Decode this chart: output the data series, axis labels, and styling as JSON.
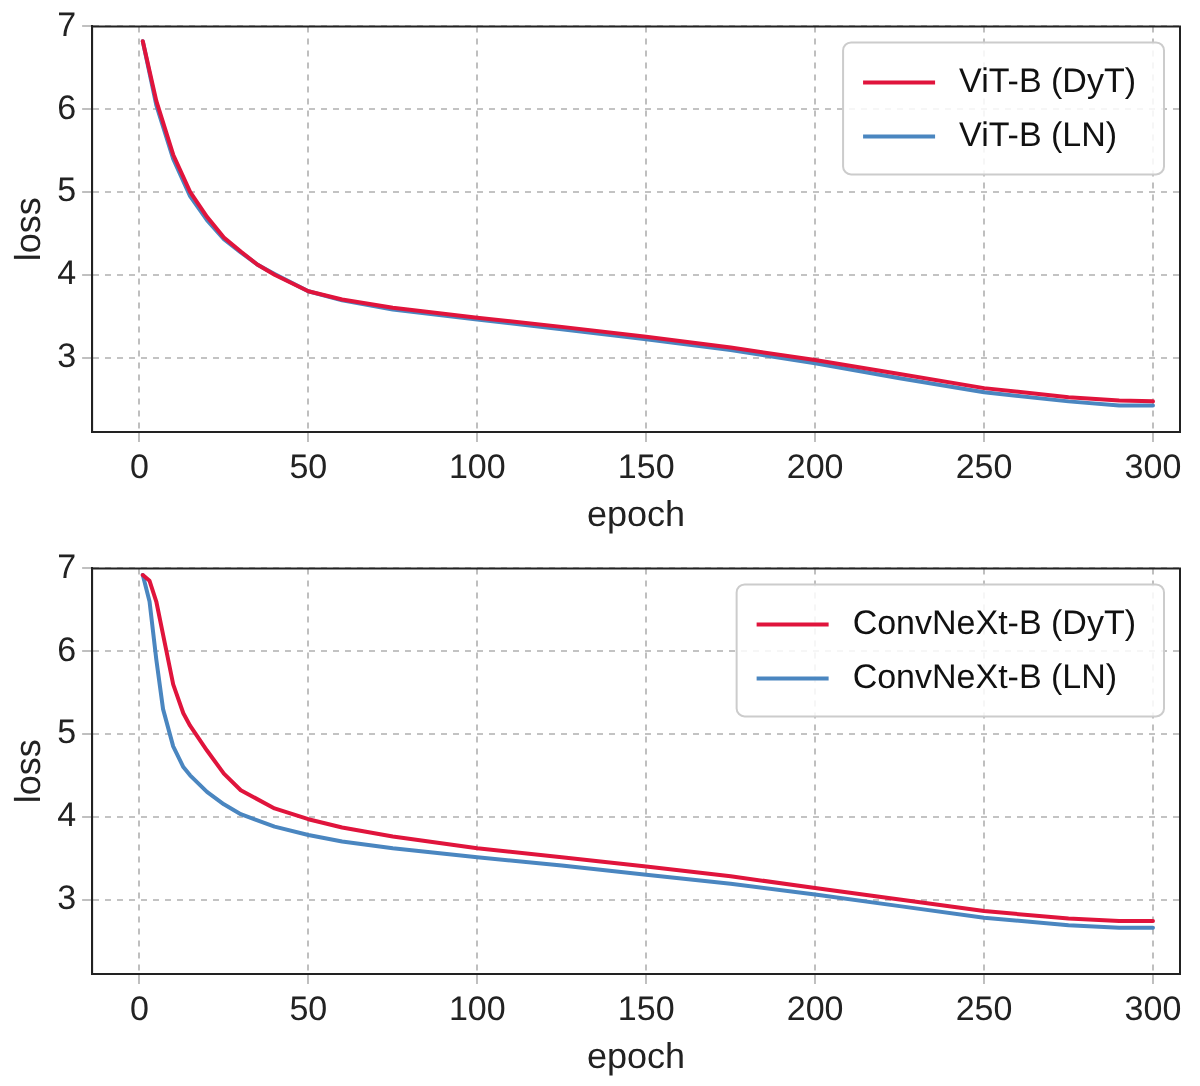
{
  "chart_data": [
    {
      "type": "line",
      "xlabel": "epoch",
      "ylabel": "loss",
      "xlim": [
        -14,
        308
      ],
      "xticks": [
        0,
        50,
        100,
        150,
        200,
        250,
        300
      ],
      "ylim": [
        2.1,
        7
      ],
      "yticks": [
        3,
        4,
        5,
        6,
        7
      ],
      "grid": true,
      "legend": "top right",
      "marker": "none",
      "line_style": "solid",
      "series": [
        {
          "name": "ViT-B (DyT)",
          "color": "#e0143c",
          "x": [
            1,
            5,
            10,
            15,
            20,
            25,
            30,
            35,
            40,
            50,
            60,
            75,
            100,
            125,
            150,
            175,
            200,
            225,
            250,
            275,
            290,
            300
          ],
          "values": [
            6.82,
            6.1,
            5.45,
            5.0,
            4.7,
            4.45,
            4.28,
            4.12,
            4.0,
            3.8,
            3.7,
            3.6,
            3.48,
            3.37,
            3.25,
            3.12,
            2.97,
            2.8,
            2.63,
            2.52,
            2.48,
            2.47
          ]
        },
        {
          "name": "ViT-B (LN)",
          "color": "#4a86c0",
          "x": [
            1,
            5,
            10,
            15,
            20,
            25,
            30,
            35,
            40,
            50,
            60,
            75,
            100,
            125,
            150,
            175,
            200,
            225,
            250,
            275,
            290,
            300
          ],
          "values": [
            6.82,
            6.05,
            5.4,
            4.95,
            4.66,
            4.43,
            4.27,
            4.12,
            4.01,
            3.8,
            3.69,
            3.58,
            3.46,
            3.34,
            3.22,
            3.09,
            2.93,
            2.75,
            2.58,
            2.47,
            2.42,
            2.42
          ]
        }
      ]
    },
    {
      "type": "line",
      "xlabel": "epoch",
      "ylabel": "loss",
      "xlim": [
        -14,
        308
      ],
      "xticks": [
        0,
        50,
        100,
        150,
        200,
        250,
        300
      ],
      "ylim": [
        2.1,
        7
      ],
      "yticks": [
        3,
        4,
        5,
        6,
        7
      ],
      "grid": true,
      "legend": "top right",
      "marker": "none",
      "line_style": "solid",
      "series": [
        {
          "name": "ConvNeXt-B (DyT)",
          "color": "#e0143c",
          "x": [
            1,
            3,
            5,
            8,
            10,
            13,
            15,
            20,
            25,
            30,
            40,
            50,
            60,
            75,
            100,
            125,
            150,
            175,
            200,
            225,
            250,
            275,
            290,
            300
          ],
          "values": [
            6.92,
            6.85,
            6.6,
            6.0,
            5.6,
            5.25,
            5.1,
            4.8,
            4.52,
            4.32,
            4.1,
            3.97,
            3.87,
            3.76,
            3.62,
            3.51,
            3.4,
            3.28,
            3.14,
            3.0,
            2.86,
            2.77,
            2.74,
            2.74
          ]
        },
        {
          "name": "ConvNeXt-B (LN)",
          "color": "#4a86c0",
          "x": [
            1,
            3,
            5,
            7,
            10,
            13,
            15,
            20,
            25,
            30,
            40,
            50,
            60,
            75,
            100,
            125,
            150,
            175,
            200,
            225,
            250,
            275,
            290,
            300
          ],
          "values": [
            6.92,
            6.6,
            5.9,
            5.3,
            4.85,
            4.6,
            4.5,
            4.3,
            4.15,
            4.03,
            3.88,
            3.78,
            3.7,
            3.62,
            3.51,
            3.41,
            3.3,
            3.19,
            3.06,
            2.92,
            2.78,
            2.69,
            2.66,
            2.66
          ]
        }
      ]
    }
  ]
}
